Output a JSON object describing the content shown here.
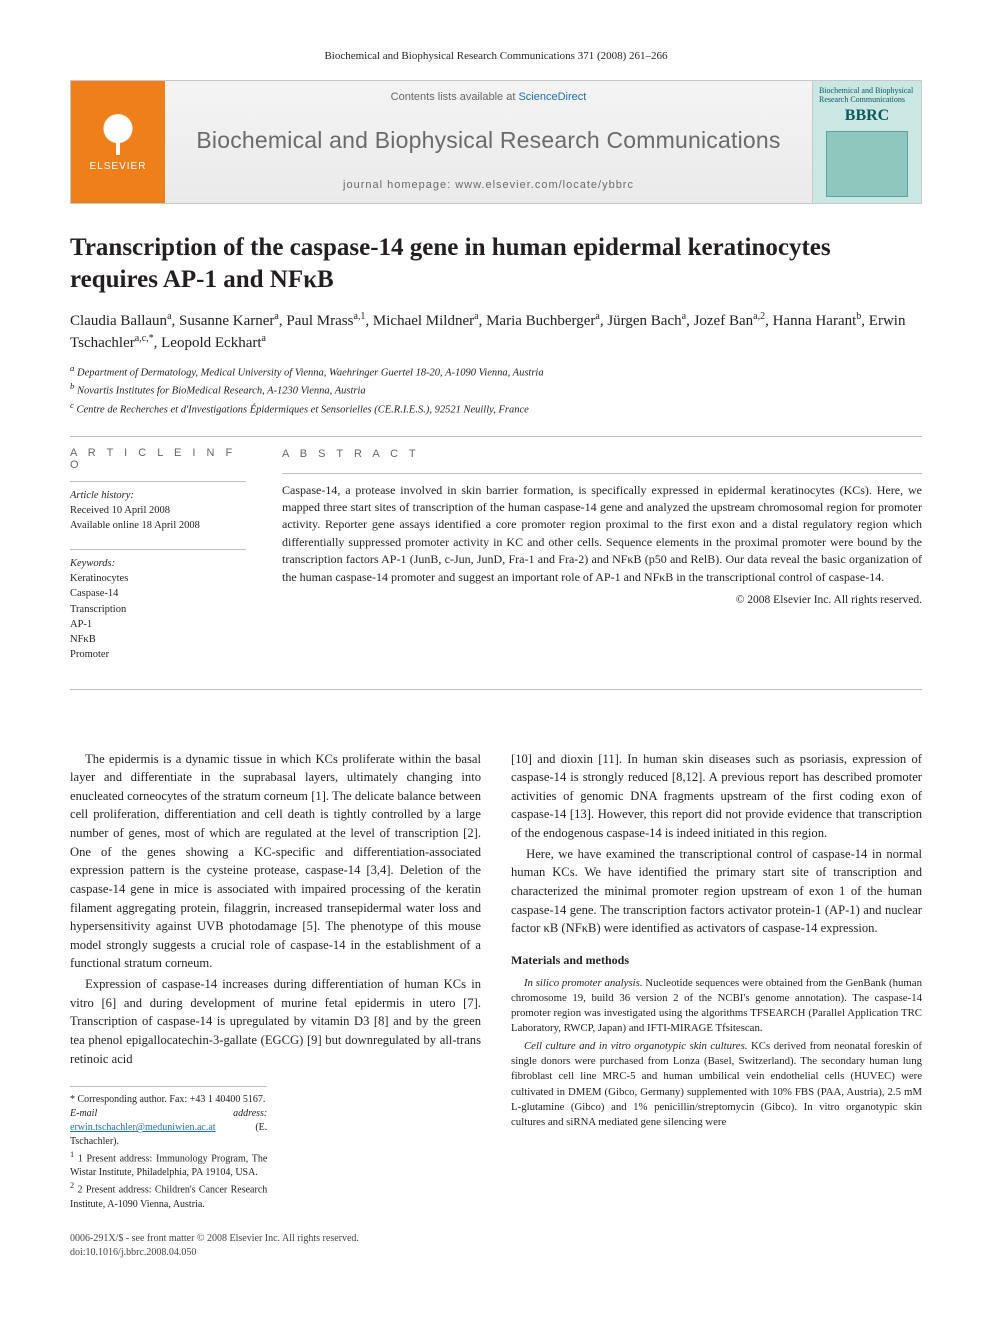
{
  "runningHead": "Biochemical and Biophysical Research Communications 371 (2008) 261–266",
  "masthead": {
    "brand": "ELSEVIER",
    "contentsPrefix": "Contents lists available at ",
    "contentsLink": "ScienceDirect",
    "journalName": "Biochemical and Biophysical Research Communications",
    "homepageLabel": "journal homepage: www.elsevier.com/locate/ybbrc",
    "coverLabelTop": "Biochemical and Biophysical Research Communications",
    "coverAbbrev": "BBRC"
  },
  "title": "Transcription of the caspase-14 gene in human epidermal keratinocytes requires AP-1 and NFκB",
  "authorsHtml": "Claudia Ballaun<sup>a</sup>, Susanne Karner<sup>a</sup>, Paul Mrass<sup>a,1</sup>, Michael Mildner<sup>a</sup>, Maria Buchberger<sup>a</sup>, Jürgen Bach<sup>a</sup>, Jozef Ban<sup>a,2</sup>, Hanna Harant<sup>b</sup>, Erwin Tschachler<sup>a,c,*</sup>, Leopold Eckhart<sup>a</sup>",
  "affiliations": [
    "a Department of Dermatology, Medical University of Vienna, Waehringer Guertel 18-20, A-1090 Vienna, Austria",
    "b Novartis Institutes for BioMedical Research, A-1230 Vienna, Austria",
    "c Centre de Recherches et d'Investigations Épidermiques et Sensorielles (CE.R.I.E.S.), 92521 Neuilly, France"
  ],
  "articleInfo": {
    "head": "A R T I C L E   I N F O",
    "historyLabel": "Article history:",
    "received": "Received 10 April 2008",
    "online": "Available online 18 April 2008",
    "keywordsLabel": "Keywords:",
    "keywords": [
      "Keratinocytes",
      "Caspase-14",
      "Transcription",
      "AP-1",
      "NFκB",
      "Promoter"
    ]
  },
  "abstract": {
    "head": "A B S T R A C T",
    "text": "Caspase-14, a protease involved in skin barrier formation, is specifically expressed in epidermal keratinocytes (KCs). Here, we mapped three start sites of transcription of the human caspase-14 gene and analyzed the upstream chromosomal region for promoter activity. Reporter gene assays identified a core promoter region proximal to the first exon and a distal regulatory region which differentially suppressed promoter activity in KC and other cells. Sequence elements in the proximal promoter were bound by the transcription factors AP-1 (JunB, c-Jun, JunD, Fra-1 and Fra-2) and NFκB (p50 and RelB). Our data reveal the basic organization of the human caspase-14 promoter and suggest an important role of AP-1 and NFκB in the transcriptional control of caspase-14.",
    "copyright": "© 2008 Elsevier Inc. All rights reserved."
  },
  "body": {
    "p1": "The epidermis is a dynamic tissue in which KCs proliferate within the basal layer and differentiate in the suprabasal layers, ultimately changing into enucleated corneocytes of the stratum corneum [1]. The delicate balance between cell proliferation, differentiation and cell death is tightly controlled by a large number of genes, most of which are regulated at the level of transcription [2]. One of the genes showing a KC-specific and differentiation-associated expression pattern is the cysteine protease, caspase-14 [3,4]. Deletion of the caspase-14 gene in mice is associated with impaired processing of the keratin filament aggregating protein, filaggrin, increased transepidermal water loss and hypersensitivity against UVB photodamage [5]. The phenotype of this mouse model strongly suggests a crucial role of caspase-14 in the establishment of a functional stratum corneum.",
    "p2": "Expression of caspase-14 increases during differentiation of human KCs in vitro [6] and during development of murine fetal epidermis in utero [7]. Transcription of caspase-14 is upregulated by vitamin D3 [8] and by the green tea phenol epigallocatechin-3-gallate (EGCG) [9] but downregulated by all-trans retinoic acid",
    "p3": "[10] and dioxin [11]. In human skin diseases such as psoriasis, expression of caspase-14 is strongly reduced [8,12]. A previous report has described promoter activities of genomic DNA fragments upstream of the first coding exon of caspase-14 [13]. However, this report did not provide evidence that transcription of the endogenous caspase-14 is indeed initiated in this region.",
    "p4": "Here, we have examined the transcriptional control of caspase-14 in normal human KCs. We have identified the primary start site of transcription and characterized the minimal promoter region upstream of exon 1 of the human caspase-14 gene. The transcription factors activator protein-1 (AP-1) and nuclear factor κB (NFκB) were identified as activators of caspase-14 expression.",
    "methodsHead": "Materials and methods",
    "m1label": "In silico promoter analysis.",
    "m1": " Nucleotide sequences were obtained from the GenBank (human chromosome 19, build 36 version 2 of the NCBI's genome annotation). The caspase-14 promoter region was investigated using the algorithms TFSEARCH (Parallel Application TRC Laboratory, RWCP, Japan) and IFTI-MIRAGE Tfsitescan.",
    "m2label": "Cell culture and in vitro organotypic skin cultures.",
    "m2": " KCs derived from neonatal foreskin of single donors were purchased from Lonza (Basel, Switzerland). The secondary human lung fibroblast cell line MRC-5 and human umbilical vein endothelial cells (HUVEC) were cultivated in DMEM (Gibco, Germany) supplemented with 10% FBS (PAA, Austria), 2.5 mM L-glutamine (Gibco) and 1% penicillin/streptomycin (Gibco). In vitro organotypic skin cultures and siRNA mediated gene silencing were"
  },
  "footnotes": {
    "corr": "* Corresponding author. Fax: +43 1 40400 5167.",
    "emailLabel": "E-mail address:",
    "email": "erwin.tschachler@meduniwien.ac.at",
    "emailName": "(E. Tschachler).",
    "n1": "1 Present address: Immunology Program, The Wistar Institute, Philadelphia, PA 19104, USA.",
    "n2": "2 Present address: Children's Cancer Research Institute, A-1090 Vienna, Austria."
  },
  "footer": {
    "line1": "0006-291X/$ - see front matter © 2008 Elsevier Inc. All rights reserved.",
    "line2": "doi:10.1016/j.bbrc.2008.04.050"
  },
  "colors": {
    "elsevierOrange": "#ef7f1a",
    "linkBlue": "#1f6fb2",
    "ruleGray": "#bdbdbd",
    "textGray": "#6a6a6a"
  }
}
